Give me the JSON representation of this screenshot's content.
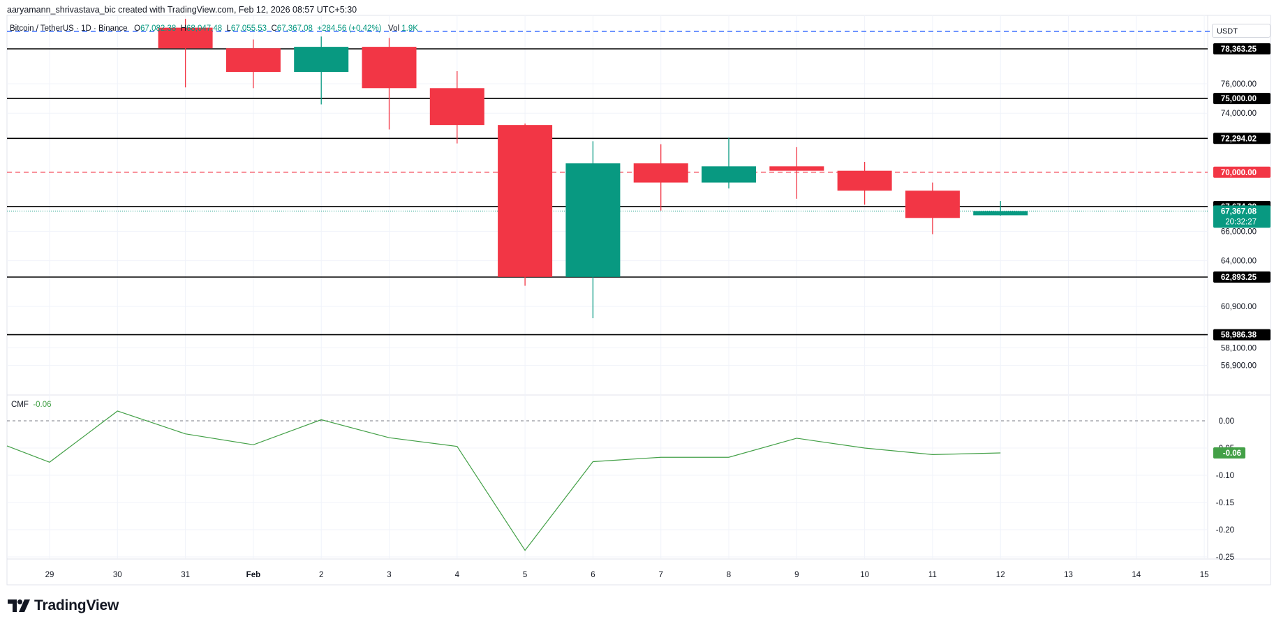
{
  "header": {
    "attribution": "aaryamann_shrivastava_bic created with TradingView.com, Feb 12, 2026 08:57 UTC+5:30"
  },
  "legend": {
    "symbol": "Bitcoin / TetherUS · 1D · Binance",
    "open_label": "O",
    "open": "67,082.38",
    "high_label": "H",
    "high": "68,047.48",
    "low_label": "L",
    "low": "67,055.53",
    "close_label": "C",
    "close": "67,367.08",
    "change": "+284.56 (+0.42%)",
    "vol_label": "Vol",
    "vol": "1.9K"
  },
  "currency": "USDT",
  "cmf_legend": {
    "name": "CMF",
    "value": "-0.06"
  },
  "brand": {
    "name": "TradingView"
  },
  "colors": {
    "up": "#089981",
    "down": "#f23645",
    "cmf_line": "#43a047",
    "level_line": "#000000",
    "red_level": "#f23645",
    "blue_level": "#2962ff",
    "grid": "#f0f3fa"
  },
  "chart_data": [
    {
      "type": "candlestick",
      "x_ticks": [
        "29",
        "30",
        "31",
        "Feb",
        "2",
        "3",
        "4",
        "5",
        "6",
        "7",
        "8",
        "9",
        "10",
        "11",
        "12",
        "13",
        "14",
        "15"
      ],
      "y_ticks": [
        "76,000.00",
        "74,000.00",
        "66,000.00",
        "64,000.00",
        "60,900.00",
        "58,100.00",
        "56,900.00"
      ],
      "y_range": [
        55800,
        80400
      ],
      "candles": [
        {
          "date": "31",
          "open": 79800,
          "high": 80400,
          "low": 75750,
          "close": 78400
        },
        {
          "date": "Feb",
          "open": 78400,
          "high": 79000,
          "low": 75700,
          "close": 76800
        },
        {
          "date": "2",
          "open": 76800,
          "high": 79200,
          "low": 74600,
          "close": 78500
        },
        {
          "date": "3",
          "open": 78500,
          "high": 79100,
          "low": 72900,
          "close": 75700
        },
        {
          "date": "4",
          "open": 75700,
          "high": 76850,
          "low": 71950,
          "close": 73200
        },
        {
          "date": "5",
          "open": 73200,
          "high": 73300,
          "low": 62300,
          "close": 62900
        },
        {
          "date": "6",
          "open": 62900,
          "high": 72100,
          "low": 60100,
          "close": 70600
        },
        {
          "date": "7",
          "open": 70600,
          "high": 71900,
          "low": 67400,
          "close": 69300
        },
        {
          "date": "8",
          "open": 69300,
          "high": 72350,
          "low": 68900,
          "close": 70400
        },
        {
          "date": "9",
          "open": 70400,
          "high": 71700,
          "low": 68200,
          "close": 70100
        },
        {
          "date": "10",
          "open": 70100,
          "high": 70700,
          "low": 67800,
          "close": 68750
        },
        {
          "date": "11",
          "open": 68750,
          "high": 69300,
          "low": 65800,
          "close": 66900
        },
        {
          "date": "12",
          "open": 67082.38,
          "high": 68047.48,
          "low": 67055.53,
          "close": 67367.08
        }
      ],
      "levels": [
        {
          "value": 78363.25,
          "label": "78,363.25",
          "style": "solid-black"
        },
        {
          "value": 75000,
          "label": "75,000.00",
          "style": "solid-black"
        },
        {
          "value": 72294.02,
          "label": "72,294.02",
          "style": "solid-black"
        },
        {
          "value": 70000,
          "label": "70,000.00",
          "style": "dashed-red"
        },
        {
          "value": 67674.39,
          "label": "67,674.39",
          "style": "solid-black"
        },
        {
          "value": 62893.25,
          "label": "62,893.25",
          "style": "solid-black"
        },
        {
          "value": 58986.38,
          "label": "58,986.38",
          "style": "solid-black"
        }
      ],
      "last_price": {
        "value": 67367.08,
        "label": "67,367.08",
        "countdown": "20:32:27"
      },
      "dashed_blue_level": 79550
    },
    {
      "type": "line",
      "name": "CMF",
      "y_ticks": [
        "0.00",
        "-0.05",
        "-0.10",
        "-0.15",
        "-0.20",
        "-0.25"
      ],
      "y_range": [
        -0.253,
        0.045
      ],
      "zero_line": 0,
      "x": [
        "28",
        "29",
        "30",
        "31",
        "Feb",
        "2",
        "3",
        "4",
        "5",
        "6",
        "7",
        "8",
        "9",
        "10",
        "11",
        "12"
      ],
      "values": [
        -0.046,
        -0.076,
        0.018,
        -0.024,
        -0.044,
        0.002,
        -0.031,
        -0.047,
        -0.238,
        -0.075,
        -0.067,
        -0.067,
        -0.032,
        -0.05,
        -0.062,
        -0.059
      ],
      "last_label": "-0.06"
    }
  ]
}
